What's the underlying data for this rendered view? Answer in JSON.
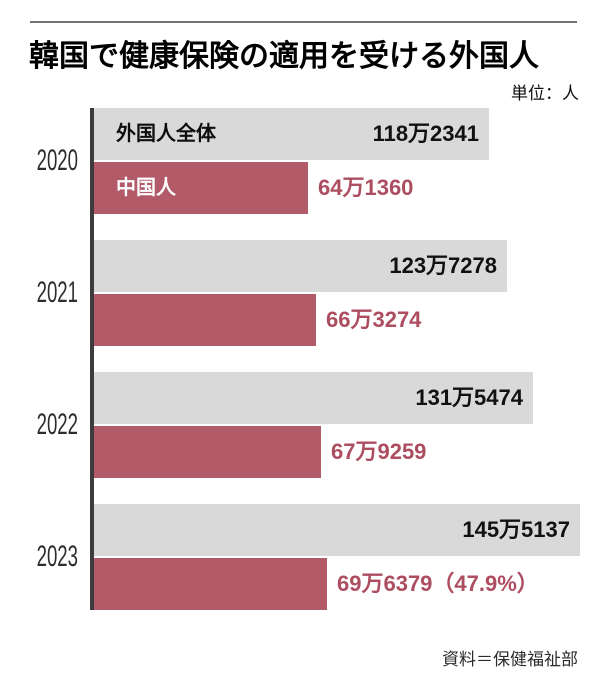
{
  "header": {
    "title": "韓国で健康保険の適用を受ける外国人",
    "unit_label": "単位：人"
  },
  "footer": {
    "source": "資料＝保健福祉部"
  },
  "colors": {
    "top_rule": "#737373",
    "axis_line": "#3c3c3c",
    "total_bar": "#d9d9d9",
    "chinese_bar": "#b25a68",
    "total_value_text": "#111111",
    "chinese_value_text": "#ad4d60",
    "year_text": "#2d2d2d"
  },
  "chart_data": {
    "type": "bar",
    "orientation": "horizontal",
    "title": "韓国で健康保険の適用を受ける外国人",
    "unit": "人",
    "source": "資料＝保健福祉部",
    "categories": [
      "2020",
      "2021",
      "2022",
      "2023"
    ],
    "series": [
      {
        "name": "外国人全体",
        "color": "#d9d9d9",
        "label_color": "#111111",
        "values": [
          1182341,
          1237278,
          1315474,
          1455137
        ],
        "value_labels": [
          "118万2341",
          "123万7278",
          "131万5474",
          "145万5137"
        ]
      },
      {
        "name": "中国人",
        "color": "#b25a68",
        "label_color": "#ad4d60",
        "values": [
          641360,
          663274,
          679259,
          696379
        ],
        "value_labels": [
          "64万1360",
          "66万3274",
          "67万9259",
          "69万6379（47.9%）"
        ]
      }
    ],
    "legend_position": "inside-first-group-bars",
    "grid": false,
    "xlim": [
      0,
      1455137
    ]
  }
}
